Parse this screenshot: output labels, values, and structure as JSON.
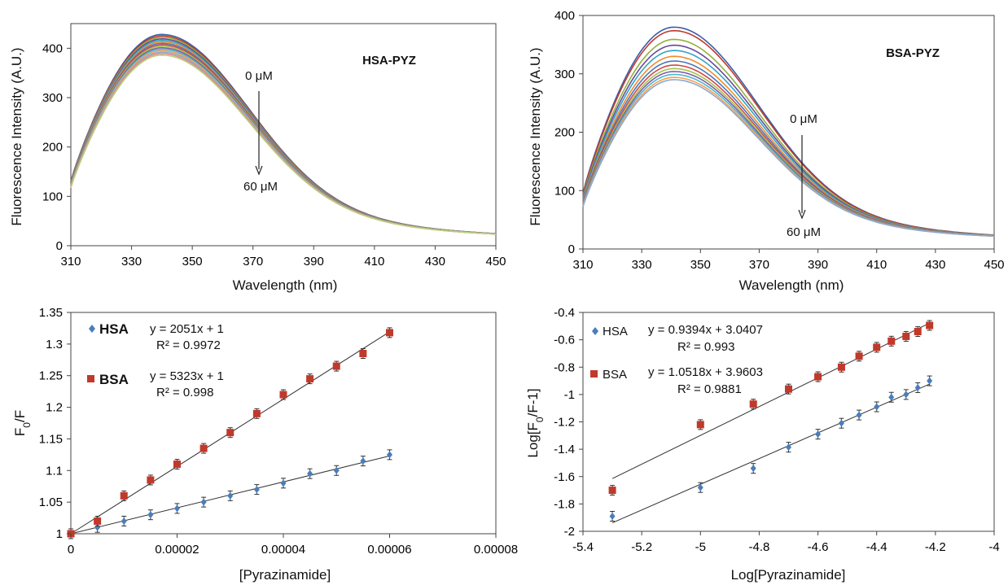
{
  "chart_data": [
    {
      "id": "hsa-spectra",
      "type": "line",
      "title": "HSA-PYZ",
      "xlabel": "Wavelength (nm)",
      "ylabel": "Fluorescence Intensity (A.U.)",
      "xlim": [
        310,
        450
      ],
      "ylim": [
        0,
        450
      ],
      "xticks": [
        "310",
        "330",
        "350",
        "370",
        "390",
        "410",
        "430",
        "450"
      ],
      "yticks": [
        "0",
        "100",
        "200",
        "300",
        "400"
      ],
      "annotations": [
        "0 μM",
        "60 μM"
      ],
      "spectrum": {
        "peak_x": 340,
        "start_y": 130,
        "tail_y": 16
      },
      "peaks": [
        428,
        425,
        422,
        419,
        416,
        413,
        410,
        407,
        404,
        401,
        398,
        395,
        392,
        389,
        386
      ],
      "colors": [
        "#3b5ea8",
        "#c0392b",
        "#8fb23e",
        "#6a4a9a",
        "#31a5c9",
        "#f08c2e",
        "#4a78b8",
        "#d04848",
        "#a4c24e",
        "#7d5fa7",
        "#4db5cd",
        "#f4a24b",
        "#8da8d4",
        "#e28a8a",
        "#b9d07a"
      ]
    },
    {
      "id": "bsa-spectra",
      "type": "line",
      "title": "BSA-PYZ",
      "xlabel": "Wavelength (nm)",
      "ylabel": "Fluorescence Intensity (A.U.)",
      "xlim": [
        310,
        450
      ],
      "ylim": [
        0,
        400
      ],
      "xticks": [
        "310",
        "330",
        "350",
        "370",
        "390",
        "410",
        "430",
        "450"
      ],
      "yticks": [
        "0",
        "100",
        "200",
        "300",
        "400"
      ],
      "annotations": [
        "0 μM",
        "60 μM"
      ],
      "spectrum": {
        "peak_x": 341,
        "start_y": 95,
        "tail_y": 16
      },
      "peaks": [
        380,
        374,
        359,
        349,
        340,
        330,
        322,
        315,
        309,
        304,
        299,
        294,
        290
      ],
      "colors": [
        "#3b5ea8",
        "#c0392b",
        "#8fb23e",
        "#6a4a9a",
        "#31a5c9",
        "#f08c2e",
        "#4a78b8",
        "#d04848",
        "#a4c24e",
        "#7d5fa7",
        "#4db5cd",
        "#f4a24b",
        "#8da8d4"
      ]
    },
    {
      "id": "stern-volmer",
      "type": "scatter",
      "xlabel": "[Pyrazinamide]",
      "ylabel": "F0/F",
      "xlim": [
        0,
        8e-05
      ],
      "ylim": [
        1,
        1.35
      ],
      "xticks": [
        "0",
        "0.00002",
        "0.00004",
        "0.00006",
        "0.00008"
      ],
      "yticks": [
        "1",
        "1.05",
        "1.1",
        "1.15",
        "1.2",
        "1.25",
        "1.3",
        "1.35"
      ],
      "series": [
        {
          "name": "HSA",
          "color": "#4a7ebb",
          "marker": "diamond",
          "equation": "y = 2051x + 1",
          "r2": "R² = 0.9972",
          "fit": {
            "slope": 2051,
            "intercept": 1,
            "x0": 0,
            "x1": 6e-05
          },
          "x": [
            0,
            5e-06,
            1e-05,
            1.5e-05,
            2e-05,
            2.5e-05,
            3e-05,
            3.5e-05,
            4e-05,
            4.5e-05,
            5e-05,
            5.5e-05,
            6e-05
          ],
          "y": [
            1,
            1.01,
            1.02,
            1.03,
            1.04,
            1.05,
            1.06,
            1.07,
            1.08,
            1.095,
            1.1,
            1.115,
            1.125
          ]
        },
        {
          "name": "BSA",
          "color": "#c0392b",
          "marker": "square",
          "equation": "y = 5323x + 1",
          "r2": "R² = 0.998",
          "fit": {
            "slope": 5323,
            "intercept": 1,
            "x0": 0,
            "x1": 6e-05
          },
          "x": [
            0,
            5e-06,
            1e-05,
            1.5e-05,
            2e-05,
            2.5e-05,
            3e-05,
            3.5e-05,
            4e-05,
            4.5e-05,
            5e-05,
            5.5e-05,
            6e-05
          ],
          "y": [
            1,
            1.02,
            1.06,
            1.085,
            1.11,
            1.135,
            1.16,
            1.19,
            1.22,
            1.245,
            1.265,
            1.285,
            1.318
          ]
        }
      ]
    },
    {
      "id": "double-log",
      "type": "scatter",
      "xlabel": "Log[Pyrazinamide]",
      "ylabel": "Log[F0/F-1]",
      "xlim": [
        -5.4,
        -4
      ],
      "ylim": [
        -2,
        -0.4
      ],
      "xticks": [
        "-5.4",
        "-5.2",
        "-5",
        "-4.8",
        "-4.6",
        "-4.4",
        "-4.2",
        "-4"
      ],
      "yticks": [
        "-2",
        "-1.8",
        "-1.6",
        "-1.4",
        "-1.2",
        "-1",
        "-0.8",
        "-0.6",
        "-0.4"
      ],
      "series": [
        {
          "name": "HSA",
          "color": "#4a7ebb",
          "marker": "diamond",
          "equation": "y = 0.9394x + 3.0407",
          "r2": "R² = 0.993",
          "fit": {
            "slope": 0.9394,
            "intercept": 3.0407,
            "x0": -5.3,
            "x1": -4.22
          },
          "x": [
            -5.3,
            -5.0,
            -4.82,
            -4.7,
            -4.6,
            -4.52,
            -4.46,
            -4.4,
            -4.35,
            -4.3,
            -4.26,
            -4.22
          ],
          "y": [
            -1.89,
            -1.68,
            -1.54,
            -1.385,
            -1.29,
            -1.21,
            -1.15,
            -1.09,
            -1.02,
            -1.0,
            -0.95,
            -0.9
          ]
        },
        {
          "name": "BSA",
          "color": "#c0392b",
          "marker": "square",
          "equation": "y = 1.0518x + 3.9603",
          "r2": "R² = 0.9881",
          "fit": {
            "slope": 1.0518,
            "intercept": 3.9603,
            "x0": -5.3,
            "x1": -4.22
          },
          "x": [
            -5.3,
            -5.0,
            -4.82,
            -4.7,
            -4.6,
            -4.52,
            -4.46,
            -4.4,
            -4.35,
            -4.3,
            -4.26,
            -4.22
          ],
          "y": [
            -1.7,
            -1.22,
            -1.07,
            -0.96,
            -0.87,
            -0.8,
            -0.72,
            -0.655,
            -0.61,
            -0.575,
            -0.54,
            -0.495
          ]
        }
      ]
    }
  ]
}
